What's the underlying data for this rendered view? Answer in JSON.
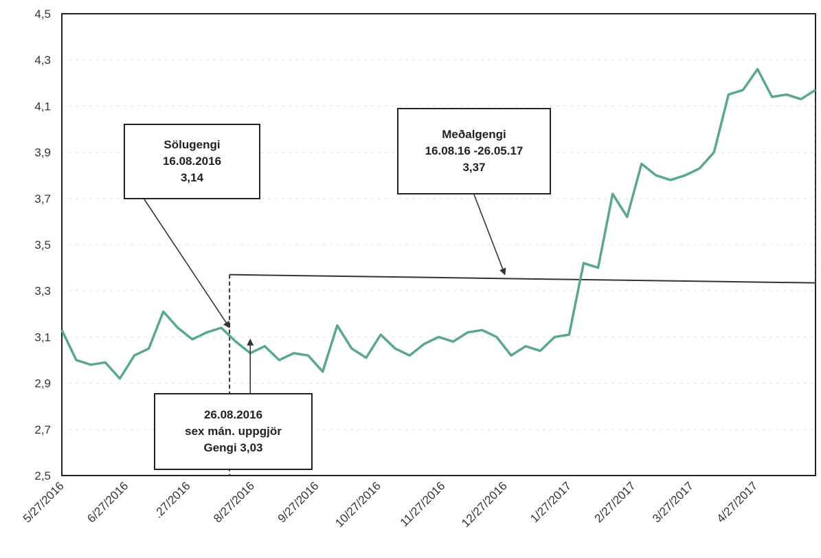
{
  "chart_data": {
    "type": "line",
    "xlabel": "",
    "ylabel": "",
    "ylim": [
      2.5,
      4.5
    ],
    "y_ticks": [
      "2,5",
      "2,7",
      "2,9",
      "3,1",
      "3,3",
      "3,5",
      "3,7",
      "3,9",
      "4,1",
      "4,3",
      "4,5"
    ],
    "x_ticks": [
      "5/27/2016",
      "6/27/2016",
      ".27/2016",
      "8/27/2016",
      "9/27/2016",
      "10/27/2016",
      "11/27/2016",
      "12/27/2016",
      "1/27/2017",
      "2/27/2017",
      "3/27/2017",
      "4/27/2017"
    ],
    "grid": true,
    "legend": "none",
    "line_color": "#5aa88a",
    "series": [
      {
        "x": [
          "2016-05-27",
          "2016-06-03",
          "2016-06-10",
          "2016-06-17",
          "2016-06-24",
          "2016-07-01",
          "2016-07-08",
          "2016-07-15",
          "2016-07-22",
          "2016-07-29",
          "2016-08-05",
          "2016-08-12",
          "2016-08-19",
          "2016-08-26",
          "2016-09-02",
          "2016-09-09",
          "2016-09-16",
          "2016-09-23",
          "2016-09-30",
          "2016-10-07",
          "2016-10-14",
          "2016-10-21",
          "2016-10-28",
          "2016-11-04",
          "2016-11-11",
          "2016-11-18",
          "2016-11-25",
          "2016-12-02",
          "2016-12-09",
          "2016-12-16",
          "2016-12-23",
          "2016-12-30",
          "2017-01-06",
          "2017-01-13",
          "2017-01-20",
          "2017-01-27",
          "2017-02-03",
          "2017-02-10",
          "2017-02-17",
          "2017-02-24",
          "2017-03-03",
          "2017-03-10",
          "2017-03-17",
          "2017-03-24",
          "2017-03-31",
          "2017-04-07",
          "2017-04-14",
          "2017-04-21",
          "2017-04-28",
          "2017-05-05",
          "2017-05-12",
          "2017-05-19",
          "2017-05-26"
        ],
        "values": [
          3.13,
          3.0,
          2.98,
          2.99,
          2.92,
          3.02,
          3.05,
          3.21,
          3.14,
          3.09,
          3.12,
          3.14,
          3.08,
          3.03,
          3.06,
          3.0,
          3.03,
          3.02,
          2.95,
          3.15,
          3.05,
          3.01,
          3.11,
          3.05,
          3.02,
          3.07,
          3.1,
          3.08,
          3.12,
          3.13,
          3.1,
          3.02,
          3.06,
          3.04,
          3.1,
          3.11,
          3.42,
          3.4,
          3.72,
          3.62,
          3.85,
          3.8,
          3.78,
          3.8,
          3.83,
          3.9,
          4.15,
          4.17,
          4.26,
          4.14,
          4.15,
          4.13,
          4.17
        ]
      }
    ],
    "reference_line": {
      "label": "3,37",
      "y": 3.37,
      "x_start": "2016-08-16",
      "x_end": "2017-05-26"
    },
    "annotations": [
      {
        "lines": [
          "Sölugengi",
          "16.08.2016",
          "3,14"
        ],
        "x": "2016-08-16",
        "y": 3.14
      },
      {
        "lines": [
          "Meðalgengi",
          "16.08.16 -26.05.17",
          "3,37"
        ],
        "x": "2016-12-27",
        "y": 3.37
      },
      {
        "lines": [
          "26.08.2016",
          "sex mán. uppgjör",
          "Gengi 3,03"
        ],
        "x": "2016-08-26",
        "y": 3.09
      }
    ]
  }
}
